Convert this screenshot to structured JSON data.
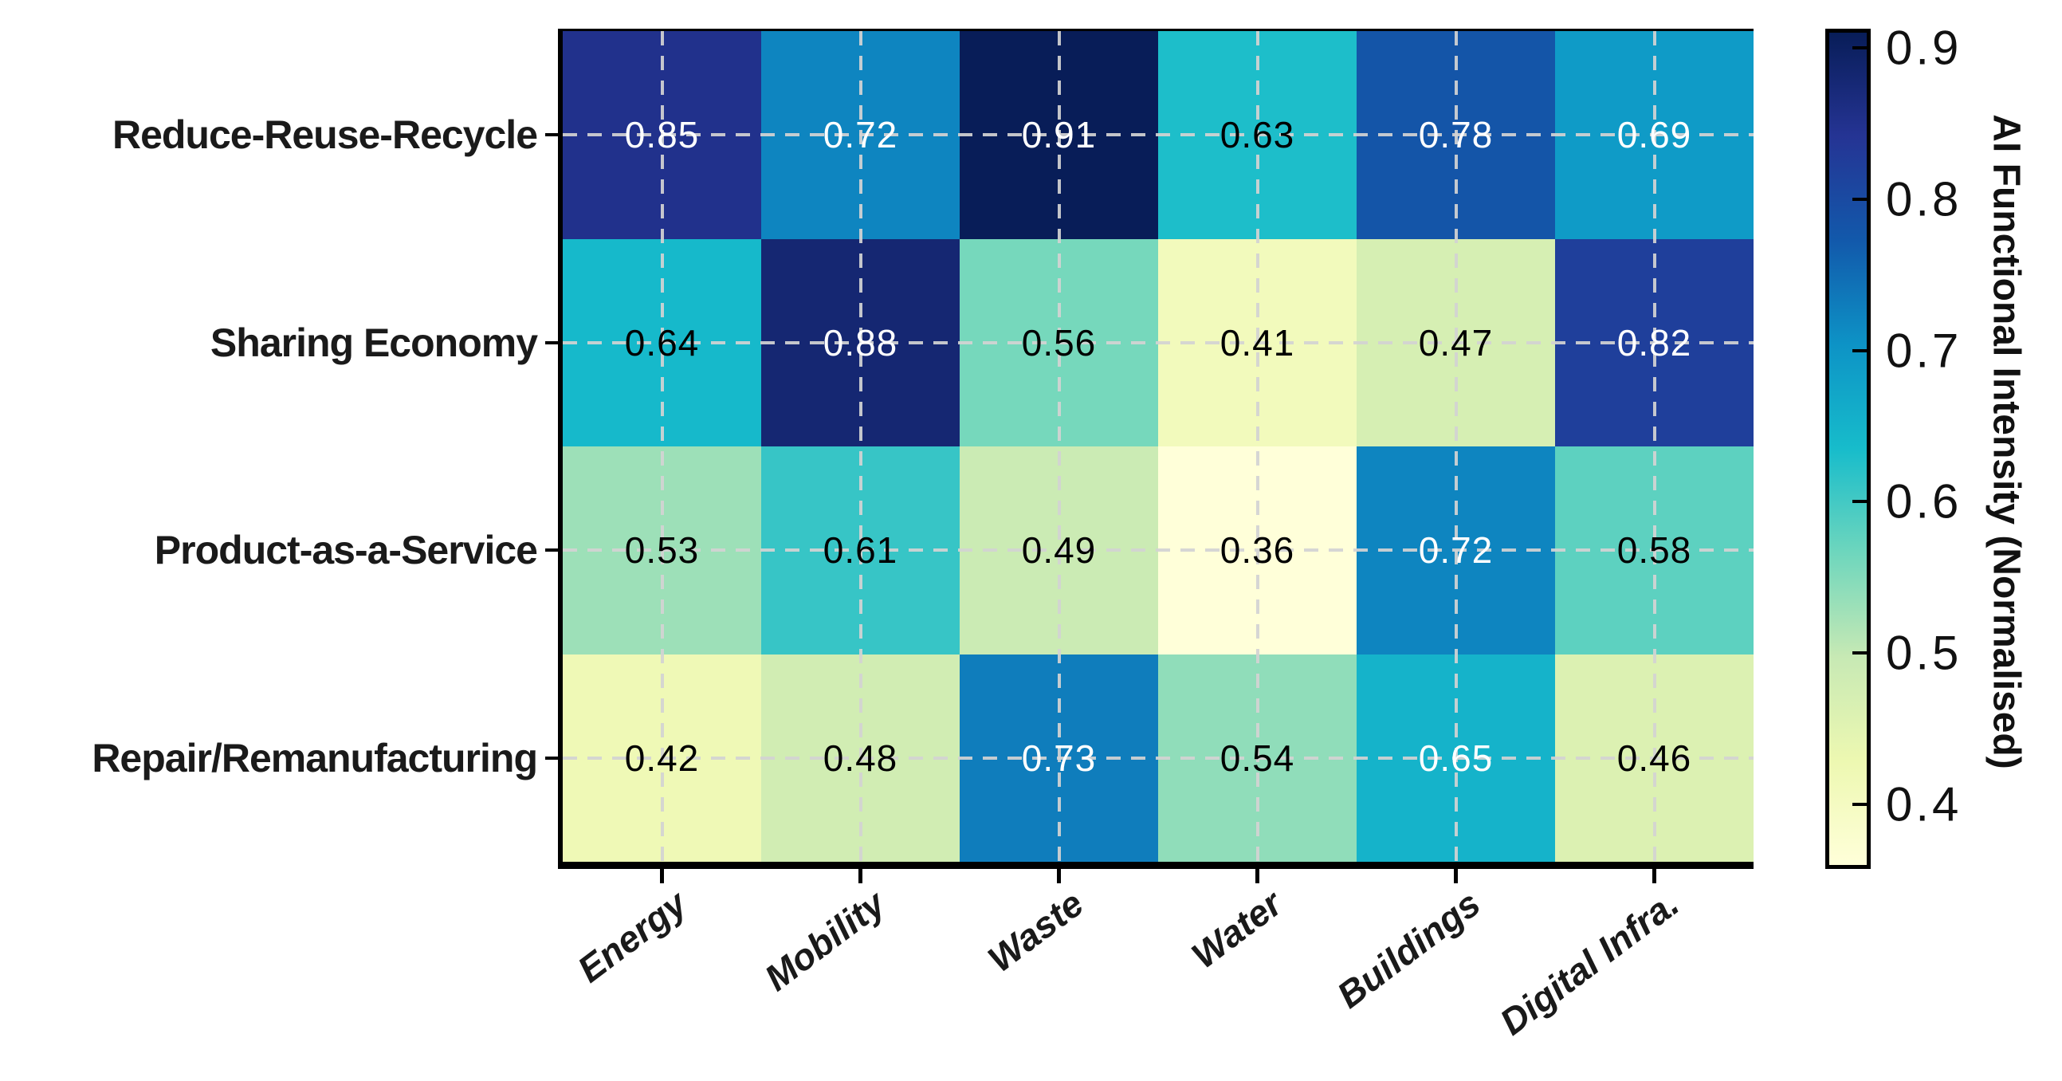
{
  "chart_data": {
    "type": "heatmap",
    "rows": [
      "Reduce-Reuse-Recycle",
      "Sharing Economy",
      "Product-as-a-Service",
      "Repair/Remanufacturing"
    ],
    "columns": [
      "Energy",
      "Mobility",
      "Waste",
      "Water",
      "Buildings",
      "Digital Infra."
    ],
    "values": [
      [
        0.85,
        0.72,
        0.91,
        0.63,
        0.78,
        0.69
      ],
      [
        0.64,
        0.88,
        0.56,
        0.41,
        0.47,
        0.82
      ],
      [
        0.53,
        0.61,
        0.49,
        0.36,
        0.72,
        0.58
      ],
      [
        0.42,
        0.48,
        0.73,
        0.54,
        0.65,
        0.46
      ]
    ],
    "value_format": "0.00",
    "cell_text_colors": {
      "light": "#ffffff",
      "dark": "#000000",
      "white_threshold": 0.65
    },
    "colorbar": {
      "label": "AI Functional Intensity (Normalised)",
      "ticks": [
        "0.4",
        "0.5",
        "0.6",
        "0.7",
        "0.8",
        "0.9"
      ],
      "vmin": 0.36,
      "vmax": 0.91,
      "position": "right"
    },
    "colormap": {
      "name": "YlGnBu",
      "anchors": [
        "#ffffd9",
        "#edf8b1",
        "#c7e9b4",
        "#6ed6bd",
        "#17bccb",
        "#0d93c6",
        "#1259ab",
        "#253494",
        "#081d58"
      ]
    },
    "grid": {
      "style": "dashed",
      "color": "#d3d3d3",
      "position": "cell-centers"
    },
    "x_tick_rotation_deg": 37,
    "axis_color": "#000000",
    "background": "#ffffff"
  }
}
